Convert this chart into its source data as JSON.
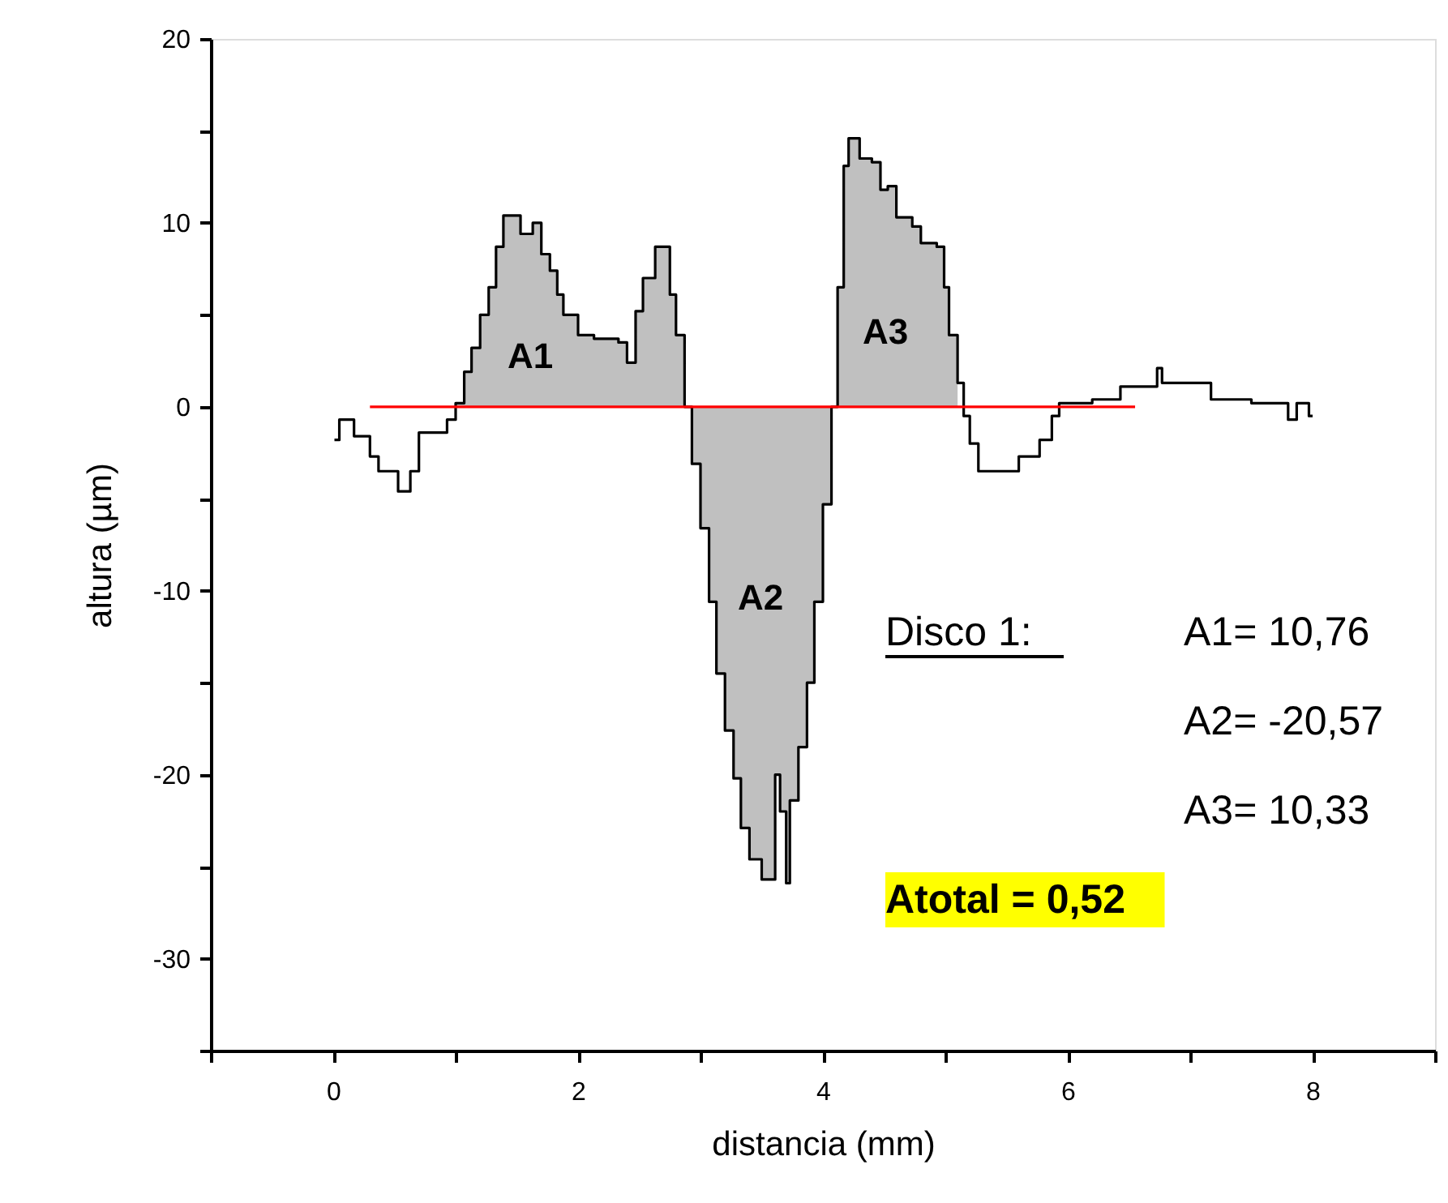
{
  "chart_data": {
    "type": "step",
    "xlabel": "distancia (mm)",
    "ylabel": "altura (µm)",
    "xlim": [
      -1,
      9
    ],
    "ylim": [
      -35,
      20
    ],
    "xticks": [
      {
        "value": -1,
        "label": null
      },
      0,
      {
        "value": 1,
        "label": null
      },
      2,
      {
        "value": 3,
        "label": null
      },
      4,
      {
        "value": 5,
        "label": null
      },
      6,
      {
        "value": 7,
        "label": null
      },
      8,
      {
        "value": 9,
        "label": null
      }
    ],
    "yticks": [
      {
        "value": -35,
        "label": null
      },
      -30,
      {
        "value": -25,
        "label": null
      },
      -20,
      {
        "value": -15,
        "label": null
      },
      -10,
      {
        "value": -5,
        "label": null
      },
      0,
      {
        "value": 5,
        "label": null
      },
      10,
      {
        "value": 15,
        "label": null
      },
      20
    ],
    "grid": false,
    "marker": "none",
    "series": [
      {
        "type": "area",
        "color": "#c0c0c0",
        "x": [
          1.0,
          1.07,
          1.13,
          1.2,
          1.27,
          1.33,
          1.39,
          1.5,
          1.53,
          1.63,
          1.7,
          1.77,
          1.83,
          1.88,
          2.0,
          2.13,
          2.33,
          2.4,
          2.47,
          2.53,
          2.63,
          2.7,
          2.75,
          2.8,
          2.87,
          2.93,
          3.0,
          3.07,
          3.13,
          3.2,
          3.27,
          3.33,
          3.4,
          3.5,
          3.59,
          3.61,
          3.65,
          3.7,
          3.73,
          3.8,
          3.87,
          3.93,
          4.0,
          4.07,
          4.12,
          4.17,
          4.21,
          4.28,
          4.3,
          4.4,
          4.47,
          4.53,
          4.6,
          4.73,
          4.8,
          4.93,
          4.99,
          5.03,
          5.1
        ],
        "values": [
          0.2,
          1.9,
          3.2,
          5.0,
          6.5,
          8.7,
          10.4,
          10.4,
          9.4,
          10.0,
          8.3,
          7.4,
          6.1,
          5.0,
          3.9,
          3.7,
          3.5,
          2.4,
          5.2,
          7.0,
          8.7,
          8.7,
          6.1,
          3.9,
          0,
          -3.1,
          -6.6,
          -10.6,
          -14.5,
          -17.6,
          -20.2,
          -22.9,
          -24.6,
          -25.7,
          -25.7,
          -20.0,
          -22.0,
          -25.9,
          -21.4,
          -18.5,
          -15.0,
          -10.6,
          -5.3,
          0,
          6.5,
          13.1,
          14.6,
          14.6,
          13.5,
          13.3,
          11.8,
          12.0,
          10.3,
          9.8,
          8.9,
          8.7,
          6.5,
          3.9,
          1.3
        ]
      },
      {
        "color": "#000000",
        "x": [
          0.01,
          0.05,
          0.17,
          0.3,
          0.37,
          0.53,
          0.63,
          0.7,
          0.87,
          0.93,
          1.0,
          1.07,
          1.13,
          1.2,
          1.27,
          1.33,
          1.39,
          1.5,
          1.53,
          1.63,
          1.7,
          1.77,
          1.83,
          1.88,
          2.0,
          2.13,
          2.33,
          2.4,
          2.47,
          2.53,
          2.63,
          2.7,
          2.75,
          2.8,
          2.87,
          2.93,
          3.0,
          3.07,
          3.13,
          3.2,
          3.27,
          3.33,
          3.4,
          3.5,
          3.59,
          3.61,
          3.65,
          3.7,
          3.73,
          3.8,
          3.87,
          3.93,
          4.0,
          4.07,
          4.12,
          4.17,
          4.21,
          4.28,
          4.3,
          4.4,
          4.47,
          4.53,
          4.6,
          4.73,
          4.8,
          4.93,
          4.99,
          5.03,
          5.1,
          5.15,
          5.2,
          5.27,
          5.57,
          5.6,
          5.77,
          5.87,
          5.93,
          6.2,
          6.37,
          6.43,
          6.73,
          6.77,
          7.13,
          7.17,
          7.5,
          7.8,
          7.87,
          7.97,
          8.0
        ],
        "values": [
          -1.8,
          -0.7,
          -1.6,
          -2.7,
          -3.5,
          -4.6,
          -3.5,
          -1.4,
          -1.4,
          -0.7,
          0.2,
          1.9,
          3.2,
          5.0,
          6.5,
          8.7,
          10.4,
          10.4,
          9.4,
          10.0,
          8.3,
          7.4,
          6.1,
          5.0,
          3.9,
          3.7,
          3.5,
          2.4,
          5.2,
          7.0,
          8.7,
          8.7,
          6.1,
          3.9,
          0,
          -3.1,
          -6.6,
          -10.6,
          -14.5,
          -17.6,
          -20.2,
          -22.9,
          -24.6,
          -25.7,
          -25.7,
          -20.0,
          -22.0,
          -25.9,
          -21.4,
          -18.5,
          -15.0,
          -10.6,
          -5.3,
          0,
          6.5,
          13.1,
          14.6,
          14.6,
          13.5,
          13.3,
          11.8,
          12.0,
          10.3,
          9.8,
          8.9,
          8.7,
          6.5,
          3.9,
          1.3,
          -0.5,
          -2.0,
          -3.5,
          -3.5,
          -2.7,
          -1.8,
          -0.5,
          0.2,
          0.4,
          0.4,
          1.1,
          2.1,
          1.3,
          1.3,
          0.4,
          0.2,
          -0.7,
          0.2,
          -0.5,
          -0.5
        ]
      },
      {
        "type": "line",
        "color": "#ff0000",
        "x": [
          0.3,
          6.55
        ],
        "values": [
          0,
          0
        ]
      }
    ],
    "annotations": [
      "A1",
      "A2",
      "A3",
      "Disco 1:",
      "A1= 10,76",
      "A2= -20,57",
      "A3= 10,33",
      "Atotal = 0,52"
    ]
  }
}
